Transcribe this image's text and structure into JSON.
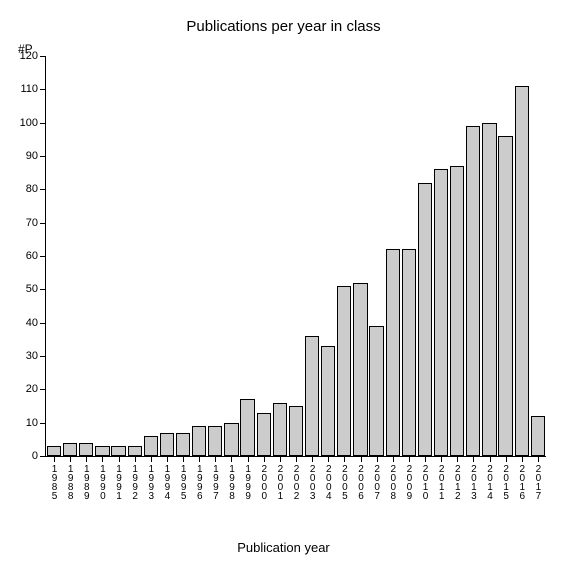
{
  "chart": {
    "type": "bar",
    "title": "Publications per year in class",
    "title_fontsize": 15,
    "y_axis_unit": "#P",
    "x_axis_label": "Publication year",
    "xlabel_fontsize": 13,
    "ylim": [
      0,
      120
    ],
    "ytick_step": 10,
    "yticks": [
      0,
      10,
      20,
      30,
      40,
      50,
      60,
      70,
      80,
      90,
      100,
      110,
      120
    ],
    "categories": [
      "1985",
      "1988",
      "1989",
      "1990",
      "1991",
      "1992",
      "1993",
      "1994",
      "1995",
      "1996",
      "1997",
      "1998",
      "1999",
      "2000",
      "2001",
      "2002",
      "2003",
      "2004",
      "2005",
      "2006",
      "2007",
      "2008",
      "2009",
      "2010",
      "2011",
      "2012",
      "2013",
      "2014",
      "2015",
      "2016",
      "2017"
    ],
    "values": [
      3,
      4,
      4,
      3,
      3,
      3,
      6,
      7,
      7,
      9,
      9,
      10,
      17,
      13,
      16,
      15,
      36,
      33,
      51,
      52,
      39,
      62,
      62,
      82,
      86,
      87,
      99,
      100,
      96,
      111,
      12
    ],
    "bar_color": "#cccccc",
    "bar_border_color": "#000000",
    "background_color": "#ffffff",
    "axis_color": "#000000",
    "tick_fontsize": 11,
    "xtick_fontsize": 10
  }
}
